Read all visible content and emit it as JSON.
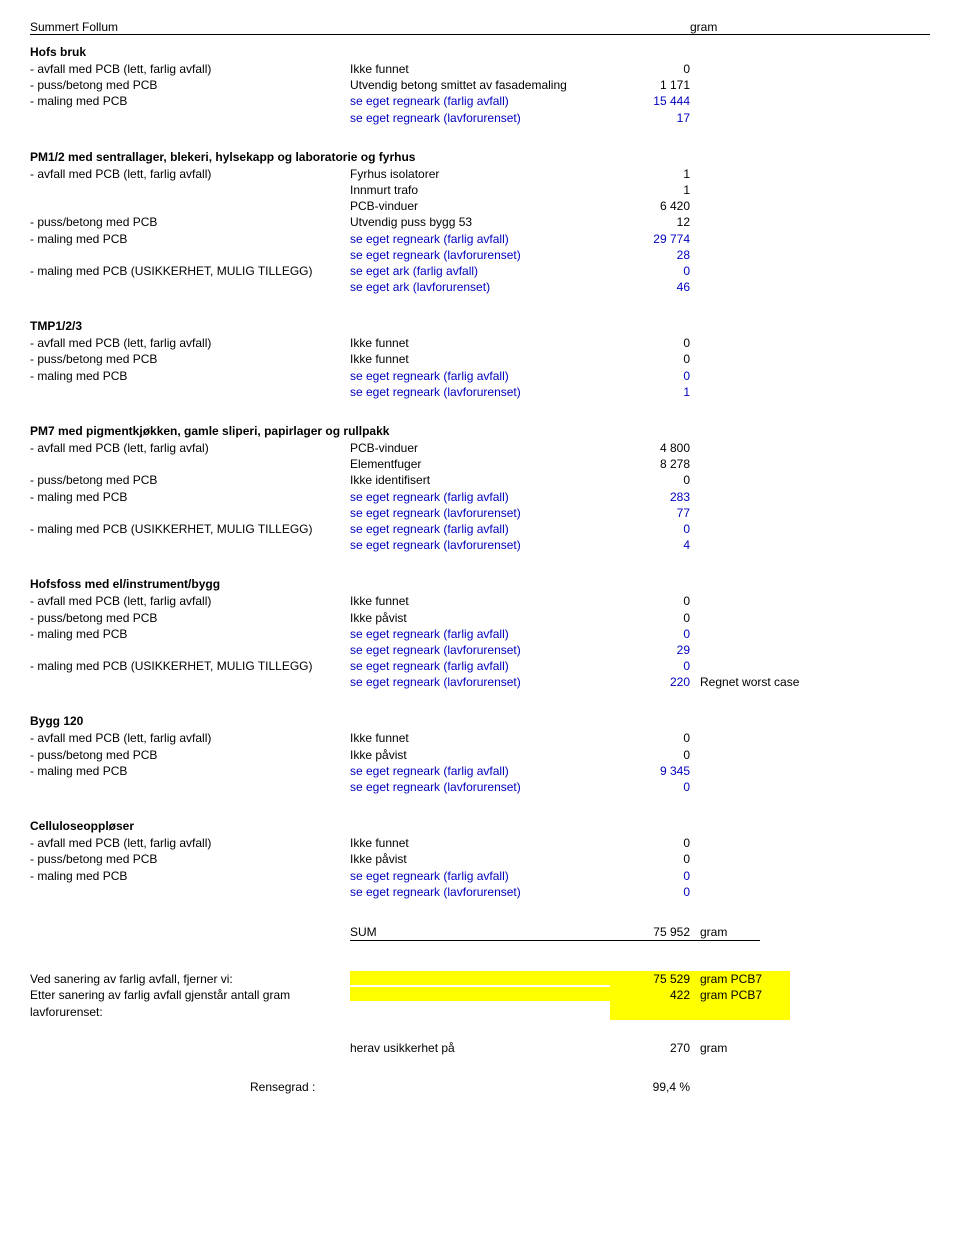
{
  "header": {
    "left": "Summert Follum",
    "right": "gram"
  },
  "sections": [
    {
      "title": "Hofs bruk",
      "rows": [
        {
          "label": "- avfall med PCB (lett, farlig avfall)",
          "desc": "Ikke funnet",
          "val": "0"
        },
        {
          "label": "- puss/betong med PCB",
          "desc": "Utvendig betong smittet av fasademaling",
          "val": "1 171"
        },
        {
          "label": "- maling med PCB",
          "desc": "se eget regneark (farlig avfall)",
          "val": "15 444",
          "blue": true
        },
        {
          "label": "",
          "desc": "se eget regneark (lavforurenset)",
          "val": "17",
          "blue": true
        }
      ]
    },
    {
      "title": "PM1/2 med sentrallager, blekeri, hylsekapp og laboratorie og fyrhus",
      "rows": [
        {
          "label": "- avfall med PCB (lett, farlig avfall)",
          "desc": "Fyrhus isolatorer",
          "val": "1"
        },
        {
          "label": "",
          "desc": "Innmurt trafo",
          "val": "1"
        },
        {
          "label": "",
          "desc": "PCB-vinduer",
          "val": "6 420"
        },
        {
          "label": "- puss/betong med PCB",
          "desc": "Utvendig puss bygg 53",
          "val": "12"
        },
        {
          "label": "- maling med PCB",
          "desc": "se eget regneark (farlig avfall)",
          "val": "29 774",
          "blue": true
        },
        {
          "label": "",
          "desc": "se eget regneark (lavforurenset)",
          "val": "28",
          "blue": true
        },
        {
          "label": "- maling med PCB (USIKKERHET, MULIG TILLEGG)",
          "desc": "se eget ark (farlig avfall)",
          "val": "0",
          "blue": true
        },
        {
          "label": "",
          "desc": "se eget ark (lavforurenset)",
          "val": "46",
          "blue": true
        }
      ]
    },
    {
      "title": "TMP1/2/3",
      "rows": [
        {
          "label": "- avfall med PCB (lett, farlig avfall)",
          "desc": "Ikke funnet",
          "val": "0"
        },
        {
          "label": "- puss/betong med PCB",
          "desc": "Ikke funnet",
          "val": "0"
        },
        {
          "label": "- maling med PCB",
          "desc": "se eget regneark (farlig avfall)",
          "val": "0",
          "blue": true
        },
        {
          "label": "",
          "desc": "se eget regneark (lavforurenset)",
          "val": "1",
          "blue": true
        }
      ]
    },
    {
      "title": "PM7 med pigmentkjøkken, gamle sliperi, papirlager og rullpakk",
      "rows": [
        {
          "label": "- avfall med PCB (lett, farlig avfal)",
          "desc": "PCB-vinduer",
          "val": "4 800"
        },
        {
          "label": "",
          "desc": "Elementfuger",
          "val": "8 278"
        },
        {
          "label": "- puss/betong med PCB",
          "desc": "Ikke identifisert",
          "val": "0"
        },
        {
          "label": "- maling med PCB",
          "desc": "se eget regneark (farlig avfall)",
          "val": "283",
          "blue": true
        },
        {
          "label": "",
          "desc": "se eget regneark (lavforurenset)",
          "val": "77",
          "blue": true
        },
        {
          "label": "- maling med PCB (USIKKERHET, MULIG TILLEGG)",
          "desc": "se eget regneark (farlig avfall)",
          "val": "0",
          "blue": true
        },
        {
          "label": "",
          "desc": "se eget regneark (lavforurenset)",
          "val": "4",
          "blue": true
        }
      ]
    },
    {
      "title": "Hofsfoss med el/instrument/bygg",
      "rows": [
        {
          "label": "- avfall med PCB (lett, farlig avfall)",
          "desc": "Ikke funnet",
          "val": "0"
        },
        {
          "label": "- puss/betong med PCB",
          "desc": "Ikke påvist",
          "val": "0"
        },
        {
          "label": "- maling med PCB",
          "desc": "se eget regneark (farlig avfall)",
          "val": "0",
          "blue": true
        },
        {
          "label": "",
          "desc": "se eget regneark (lavforurenset)",
          "val": "29",
          "blue": true
        },
        {
          "label": "- maling med PCB (USIKKERHET, MULIG TILLEGG)",
          "desc": "se eget regneark (farlig avfall)",
          "val": "0",
          "blue": true
        },
        {
          "label": "",
          "desc": "se eget regneark (lavforurenset)",
          "val": "220",
          "blue": true,
          "note": "Regnet worst case"
        }
      ]
    },
    {
      "title": "Bygg 120",
      "rows": [
        {
          "label": "- avfall med PCB (lett, farlig avfall)",
          "desc": "Ikke funnet",
          "val": "0"
        },
        {
          "label": "- puss/betong med PCB",
          "desc": "Ikke påvist",
          "val": "0"
        },
        {
          "label": "- maling med PCB",
          "desc": "se eget regneark (farlig avfall)",
          "val": "9 345",
          "blue": true
        },
        {
          "label": "",
          "desc": "se eget regneark (lavforurenset)",
          "val": "0",
          "blue": true
        }
      ]
    },
    {
      "title": "Celluloseoppløser",
      "rows": [
        {
          "label": "- avfall med PCB (lett, farlig avfall)",
          "desc": "Ikke funnet",
          "val": "0"
        },
        {
          "label": "- puss/betong med PCB",
          "desc": "Ikke påvist",
          "val": "0"
        },
        {
          "label": "- maling med PCB",
          "desc": "se eget regneark (farlig avfall)",
          "val": "0",
          "blue": true
        },
        {
          "label": "",
          "desc": "se eget regneark (lavforurenset)",
          "val": "0",
          "blue": true
        }
      ]
    }
  ],
  "sum": {
    "label": "SUM",
    "val": "75 952",
    "unit": "gram"
  },
  "footer": {
    "line1": {
      "label": "Ved sanering av farlig avfall, fjerner vi:",
      "val": "75 529",
      "unit": "gram PCB7"
    },
    "line2": {
      "label": "Etter sanering av farlig avfall gjenstår antall gram lavforurenset:",
      "val": "422",
      "unit": "gram PCB7"
    },
    "uncert": {
      "label": "herav usikkerhet på",
      "val": "270",
      "unit": "gram"
    },
    "rense": {
      "label": "Rensegrad :",
      "val": "99,4 %"
    }
  }
}
